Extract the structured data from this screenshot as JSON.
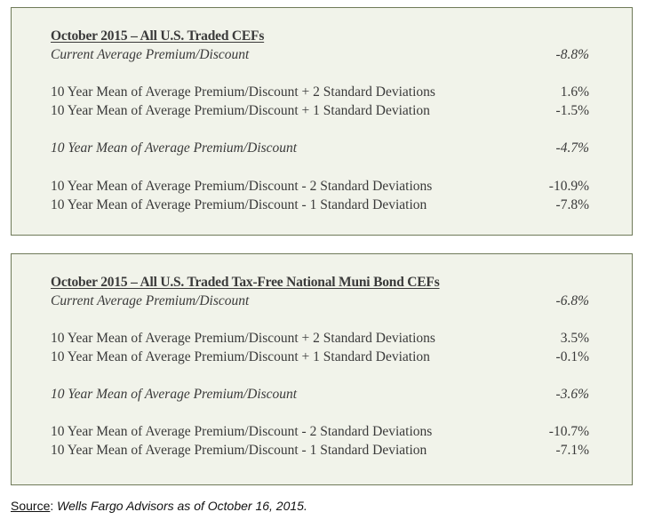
{
  "panels": [
    {
      "title": "October 2015 – All U.S. Traded CEFs",
      "rows": [
        {
          "label": "Current Average Premium/Discount",
          "value": "-8.8%"
        },
        {
          "label": "10 Year Mean of Average Premium/Discount + 2 Standard Deviations",
          "value": "1.6%"
        },
        {
          "label": "10 Year Mean of Average Premium/Discount + 1 Standard Deviation",
          "value": "-1.5%"
        },
        {
          "label": "10 Year Mean of Average Premium/Discount",
          "value": "-4.7%"
        },
        {
          "label": "10 Year Mean of Average Premium/Discount - 2 Standard Deviations",
          "value": "-10.9%"
        },
        {
          "label": "10 Year Mean of Average Premium/Discount - 1 Standard Deviation",
          "value": "-7.8%"
        }
      ]
    },
    {
      "title": "October 2015 – All U.S. Traded Tax-Free National Muni Bond CEFs",
      "rows": [
        {
          "label": "Current Average Premium/Discount",
          "value": "-6.8%"
        },
        {
          "label": "10 Year Mean of Average Premium/Discount + 2 Standard Deviations",
          "value": "3.5%"
        },
        {
          "label": "10 Year Mean of Average Premium/Discount + 1 Standard Deviation",
          "value": "-0.1%"
        },
        {
          "label": "10 Year Mean of Average Premium/Discount",
          "value": "-3.6%"
        },
        {
          "label": "10 Year Mean of Average Premium/Discount - 2 Standard Deviations",
          "value": "-10.7%"
        },
        {
          "label": "10 Year Mean of Average Premium/Discount - 1 Standard Deviation",
          "value": "-7.1%"
        }
      ]
    }
  ],
  "source": {
    "label": "Source",
    "text": "Wells Fargo Advisors as of October 16, 2015."
  }
}
